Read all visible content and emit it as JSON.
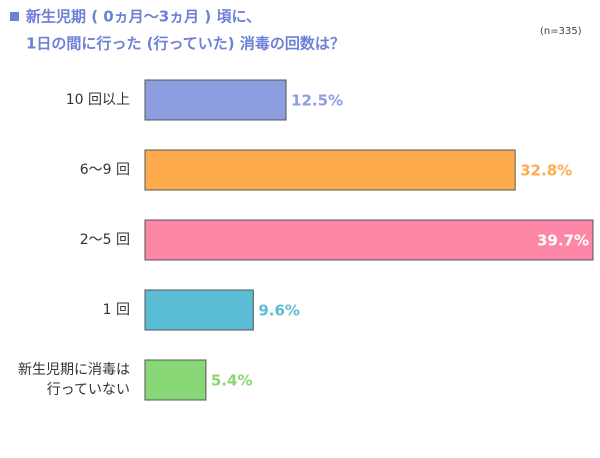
{
  "chart_data": {
    "type": "bar",
    "orientation": "horizontal",
    "title": [
      "新生児期 ( 0ヵ月〜3ヵ月 ) 頃に、",
      "1日の間に行った (行っていた) 消毒の回数は？"
    ],
    "note": "(n=335)",
    "categories": [
      "10 回以上",
      "6〜9 回",
      "2〜5 回",
      "1 回",
      "新生児期に消毒は\n行っていない"
    ],
    "values": [
      12.5,
      32.8,
      39.7,
      9.6,
      5.4
    ],
    "value_labels": [
      "12.5%",
      "32.8%",
      "39.7%",
      "9.6%",
      "5.4%"
    ],
    "colors": [
      "#8c9ee0",
      "#fdab4d",
      "#fb86a6",
      "#5bbcd6",
      "#88d676"
    ]
  }
}
